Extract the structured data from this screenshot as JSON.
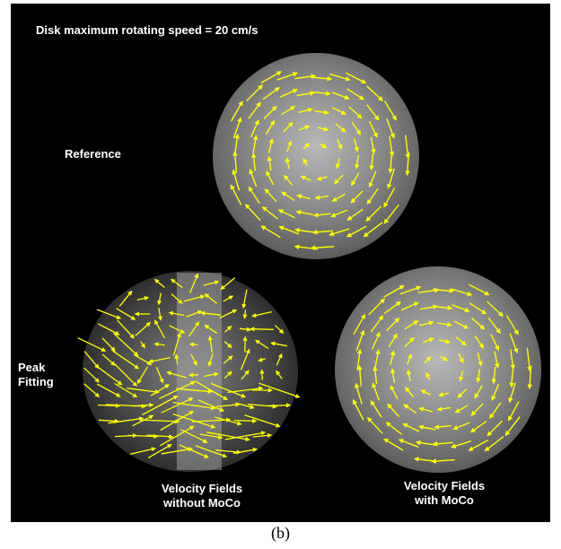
{
  "figure": {
    "title": "Disk maximum rotating speed = 20 cm/s",
    "reference_label": "Reference",
    "method_label": "Peak Fitting",
    "panel_left_label_1": "Velocity Fields",
    "panel_left_label_2": "without MoCo",
    "panel_right_label_1": "Velocity Fields",
    "panel_right_label_2": "with MoCo",
    "arrow_color": "#ffff00",
    "background_color": "#000000"
  },
  "caption": "(b)"
}
